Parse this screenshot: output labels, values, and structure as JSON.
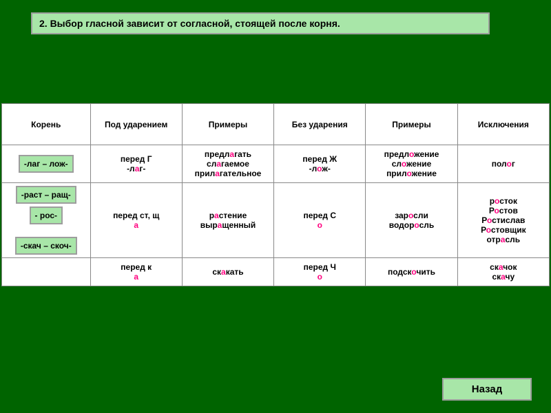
{
  "title": "2. Выбор гласной зависит от согласной, стоящей после корня.",
  "headers": {
    "root": "Корень",
    "stressed": "Под ударением",
    "examples1": "Примеры",
    "unstressed": "Без ударения",
    "examples2": "Примеры",
    "exceptions": "Исключения"
  },
  "rows": [
    {
      "root_label": "-лаг – лож-",
      "stressed_pre": "перед Г",
      "stressed_root": {
        "pre": "-л",
        "hl": "а",
        "post": "г-"
      },
      "ex1": [
        {
          "pre": "предл",
          "hl": "а",
          "post": "гать"
        },
        {
          "pre": "сл",
          "hl": "а",
          "post": "гаемое"
        },
        {
          "pre": "прил",
          "hl": "а",
          "post": "гательное"
        }
      ],
      "unstressed_pre": "перед Ж",
      "unstressed_root": {
        "pre": "-л",
        "hl": "о",
        "post": "ж-"
      },
      "ex2": [
        {
          "pre": "предл",
          "hl": "о",
          "post": "жение"
        },
        {
          "pre": "сл",
          "hl": "о",
          "post": "жение"
        },
        {
          "pre": "прил",
          "hl": "о",
          "post": "жение"
        }
      ],
      "exc": [
        {
          "pre": "пол",
          "hl": "о",
          "post": "г"
        }
      ]
    },
    {
      "root_labels": [
        "-раст – ращ-",
        "- рос-",
        "-скач – скоч-"
      ],
      "stressed_pre": "перед ст, щ",
      "stressed_root": {
        "pre": "",
        "hl": "а",
        "post": ""
      },
      "ex1": [
        {
          "pre": "р",
          "hl": "а",
          "post": "стение"
        },
        {
          "pre": "выр",
          "hl": "а",
          "post": "щенный"
        }
      ],
      "unstressed_pre": "перед С",
      "unstressed_root": {
        "pre": "",
        "hl": "о",
        "post": ""
      },
      "ex2": [
        {
          "pre": "зар",
          "hl": "о",
          "post": "сли"
        },
        {
          "pre": "водор",
          "hl": "о",
          "post": "сль"
        }
      ],
      "exc": [
        {
          "pre": "р",
          "hl": "о",
          "post": "сток"
        },
        {
          "pre": "Р",
          "hl": "о",
          "post": "стов"
        },
        {
          "pre": "Р",
          "hl": "о",
          "post": "стислав"
        },
        {
          "pre": "Р",
          "hl": "о",
          "post": "стовщик"
        },
        {
          "pre": "отр",
          "hl": "а",
          "post": "сль"
        }
      ]
    },
    {
      "root_label": "",
      "stressed_pre": "перед к",
      "stressed_root": {
        "pre": "",
        "hl": "а",
        "post": ""
      },
      "ex1": [
        {
          "pre": "ск",
          "hl": "а",
          "post": "кать"
        }
      ],
      "unstressed_pre": "перед Ч",
      "unstressed_root": {
        "pre": "",
        "hl": "о",
        "post": ""
      },
      "ex2": [
        {
          "pre": "подск",
          "hl": "о",
          "post": "чить"
        }
      ],
      "exc": [
        {
          "pre": "ск",
          "hl": "а",
          "post": "чок"
        },
        {
          "pre": "ск",
          "hl": "а",
          "post": "чу"
        }
      ]
    }
  ],
  "back_label": "Назад",
  "colors": {
    "page_bg": "#006400",
    "panel_bg": "#a8e6a8",
    "panel_border": "#9d9d9d",
    "highlight": "#ff007f",
    "table_bg": "#ffffff"
  }
}
